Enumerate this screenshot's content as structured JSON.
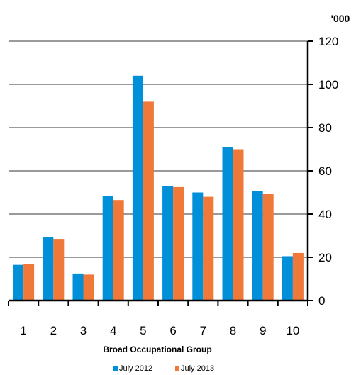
{
  "chart_data": {
    "type": "bar",
    "title": "",
    "xlabel": "Broad Occupational Group",
    "ylabel": "",
    "y_unit_label": "'000",
    "ylim": [
      0,
      120
    ],
    "yticks": [
      0,
      20,
      40,
      60,
      80,
      100,
      120
    ],
    "y_axis_side": "right",
    "grid": true,
    "legend_position": "bottom",
    "categories": [
      "1",
      "2",
      "3",
      "4",
      "5",
      "6",
      "7",
      "8",
      "9",
      "10"
    ],
    "series": [
      {
        "name": "July 2012",
        "color": "#0090d9",
        "values": [
          16.5,
          29.5,
          12.5,
          48.5,
          104,
          53,
          50,
          71,
          50.5,
          20.5
        ]
      },
      {
        "name": "July 2013",
        "color": "#f07838",
        "values": [
          17,
          28.5,
          12,
          46.5,
          92,
          52.5,
          48,
          70,
          49.5,
          22
        ]
      }
    ]
  }
}
